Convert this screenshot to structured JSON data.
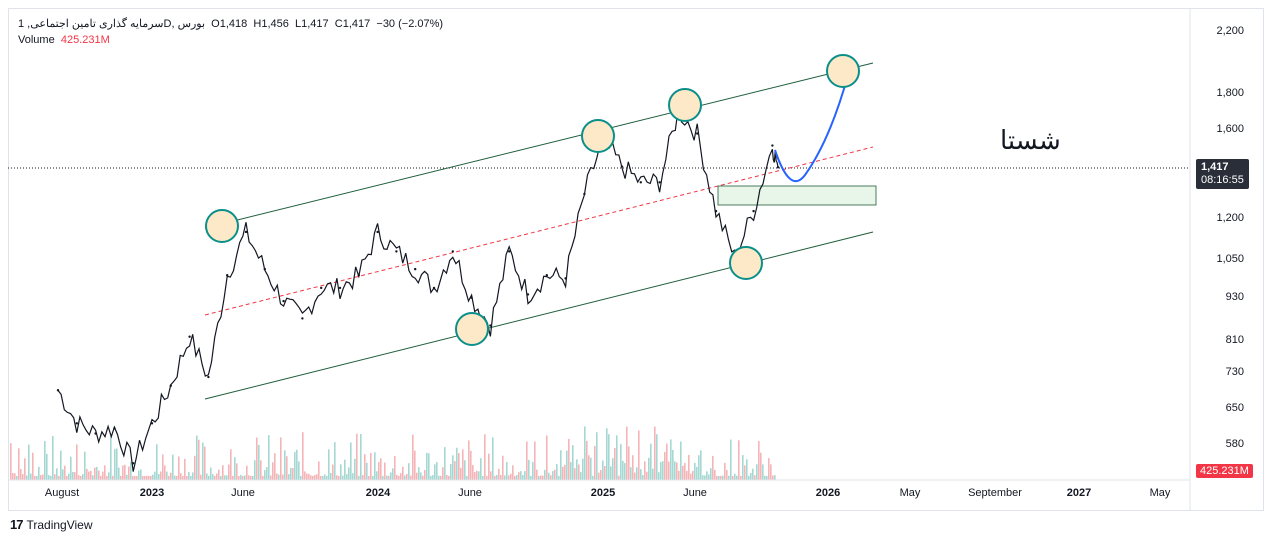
{
  "legend": {
    "symbol": "سرمایه گذاری تامین اجتماعی, 1D, بورس",
    "open": "O1,418",
    "high": "H1,456",
    "low": "L1,417",
    "close": "C1,417",
    "change": "−30 (−2.07%)",
    "volume_label": "Volume",
    "volume_value": "425.231M"
  },
  "price_badge": {
    "price": "1,417",
    "countdown": "08:16:55"
  },
  "volume_badge": "425.231M",
  "symbol_annotation": "شستا",
  "y_axis": [
    "2,200",
    "1,800",
    "1,600",
    "1,200",
    "1,050",
    "930",
    "810",
    "730",
    "650",
    "580"
  ],
  "x_axis": [
    "August",
    "2023",
    "June",
    "2024",
    "June",
    "2025",
    "June",
    "2026",
    "May",
    "September",
    "2027",
    "May"
  ],
  "brand": "TradingView",
  "colors": {
    "channel": "#1e5e3b",
    "midline": "#f23645",
    "circle_fill": "#fde9c7",
    "circle_stroke": "#0b8f8a",
    "forecast": "#2962ff",
    "zone": "#e8f5e9"
  },
  "chart_data": {
    "type": "line",
    "scale": "log",
    "ylim": [
      580,
      2200
    ],
    "x_unit": "months since Jan 2023",
    "close": [
      [
        -5,
        690
      ],
      [
        -4,
        620
      ],
      [
        -3,
        600
      ],
      [
        -2,
        610
      ],
      [
        -1,
        545
      ],
      [
        0,
        620
      ],
      [
        1,
        700
      ],
      [
        2,
        820
      ],
      [
        3,
        720
      ],
      [
        4,
        1000
      ],
      [
        5,
        1150
      ],
      [
        6,
        1020
      ],
      [
        7,
        920
      ],
      [
        8,
        870
      ],
      [
        9,
        960
      ],
      [
        10,
        960
      ],
      [
        11,
        1000
      ],
      [
        12,
        1150
      ],
      [
        13,
        1080
      ],
      [
        14,
        1020
      ],
      [
        15,
        960
      ],
      [
        16,
        1080
      ],
      [
        17,
        930
      ],
      [
        18,
        850
      ],
      [
        19,
        1080
      ],
      [
        20,
        940
      ],
      [
        21,
        1000
      ],
      [
        22,
        990
      ],
      [
        23,
        1300
      ],
      [
        24,
        1550
      ],
      [
        25,
        1420
      ],
      [
        26,
        1350
      ],
      [
        27,
        1350
      ],
      [
        28,
        1700
      ],
      [
        29,
        1580
      ],
      [
        30,
        1230
      ],
      [
        31,
        1060
      ],
      [
        32,
        1230
      ],
      [
        33,
        1520
      ],
      [
        33.3,
        1417
      ]
    ]
  }
}
